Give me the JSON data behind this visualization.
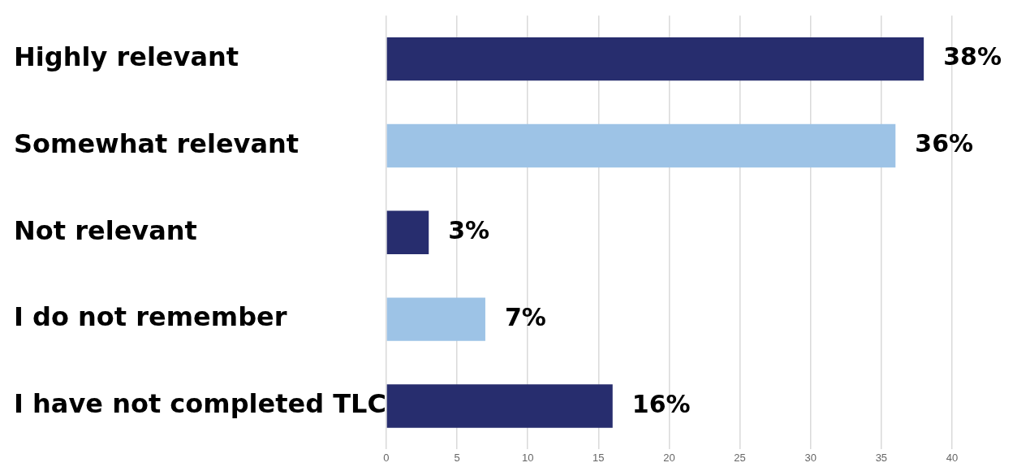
{
  "chart_data": {
    "type": "bar",
    "orientation": "horizontal",
    "categories": [
      "Highly relevant",
      "Somewhat relevant",
      "Not relevant",
      "I do not remember",
      "I have not completed TLC"
    ],
    "values": [
      38,
      36,
      3,
      7,
      16
    ],
    "colors": [
      "#272d6e",
      "#9dc3e6",
      "#272d6e",
      "#9dc3e6",
      "#272d6e"
    ],
    "value_labels": [
      "38%",
      "36%",
      "3%",
      "7%",
      "16%"
    ],
    "xlim": [
      0,
      40
    ],
    "xticks": [
      0,
      5,
      10,
      15,
      20,
      25,
      30,
      35,
      40
    ],
    "grid": "x",
    "legend": false
  }
}
